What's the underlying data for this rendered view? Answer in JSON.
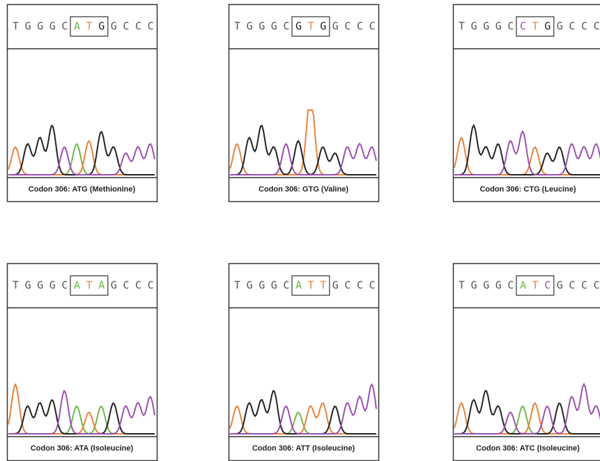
{
  "panels": [
    {
      "sequence": [
        "T",
        "G",
        "G",
        "G",
        "C",
        "A",
        "T",
        "G",
        "G",
        "C",
        "C",
        "C"
      ],
      "caption": "Codon 306: ATG (Methionine)"
    },
    {
      "sequence": [
        "T",
        "G",
        "G",
        "G",
        "C",
        "G",
        "T",
        "G",
        "G",
        "C",
        "C",
        "C"
      ],
      "caption": "Codon 306: GTG (Valine)"
    },
    {
      "sequence": [
        "T",
        "G",
        "G",
        "G",
        "C",
        "C",
        "T",
        "G",
        "G",
        "C",
        "C",
        "C"
      ],
      "caption": "Codon 306: CTG (Leucine)"
    },
    {
      "sequence": [
        "T",
        "G",
        "G",
        "G",
        "C",
        "A",
        "T",
        "A",
        "G",
        "C",
        "C",
        "C"
      ],
      "caption": "Codon 306: ATA (Isoleucine)"
    },
    {
      "sequence": [
        "T",
        "G",
        "G",
        "G",
        "C",
        "A",
        "T",
        "T",
        "G",
        "C",
        "C",
        "C"
      ],
      "caption": "Codon 306: ATT (Isoleucine)"
    },
    {
      "sequence": [
        "T",
        "G",
        "G",
        "G",
        "C",
        "A",
        "T",
        "C",
        "G",
        "C",
        "C",
        "C"
      ],
      "caption": "Codon 306: ATC (Isoleucine)"
    }
  ]
}
